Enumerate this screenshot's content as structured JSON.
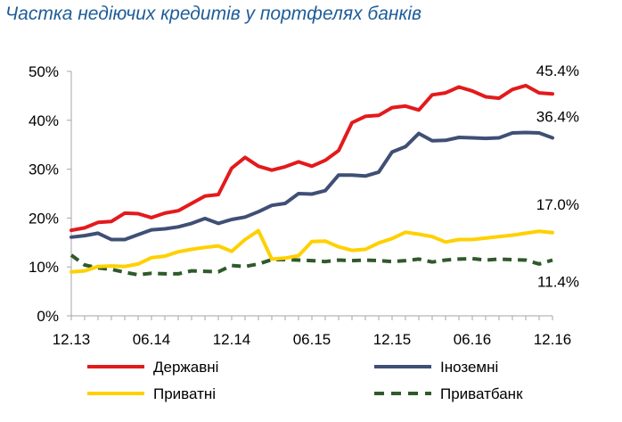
{
  "title": "Частка недіючих кредитів у портфелях банків",
  "chart_data": {
    "type": "line",
    "title": "Частка недіючих кредитів у портфелях банків",
    "xlabel": "",
    "ylabel": "",
    "ylim": [
      0,
      50
    ],
    "y_ticks": [
      "0%",
      "10%",
      "20%",
      "30%",
      "40%",
      "50%"
    ],
    "x_tick_labels": [
      "12.13",
      "06.14",
      "12.14",
      "06.15",
      "12.15",
      "06.16",
      "12.16"
    ],
    "x": [
      "12.13",
      "01.14",
      "02.14",
      "03.14",
      "04.14",
      "05.14",
      "06.14",
      "07.14",
      "08.14",
      "09.14",
      "10.14",
      "11.14",
      "12.14",
      "01.15",
      "02.15",
      "03.15",
      "04.15",
      "05.15",
      "06.15",
      "07.15",
      "08.15",
      "09.15",
      "10.15",
      "11.15",
      "12.15",
      "01.16",
      "02.16",
      "03.16",
      "04.16",
      "05.16",
      "06.16",
      "07.16",
      "08.16",
      "09.16",
      "10.16",
      "11.16",
      "12.16"
    ],
    "grid": false,
    "legend_position": "bottom",
    "series": [
      {
        "name": "Державні",
        "color": "#e31a1c",
        "style": "solid",
        "values": [
          17.5,
          18.0,
          19.1,
          19.3,
          21.0,
          20.9,
          20.1,
          21.0,
          21.5,
          23.0,
          24.5,
          24.8,
          30.2,
          32.4,
          30.6,
          29.8,
          30.5,
          31.5,
          30.6,
          31.8,
          33.8,
          39.5,
          40.8,
          41.0,
          42.6,
          42.9,
          42.1,
          45.2,
          45.6,
          46.8,
          46.0,
          44.8,
          44.5,
          46.3,
          47.1,
          45.6,
          45.4
        ],
        "end_label": "45.4%"
      },
      {
        "name": "Іноземні",
        "color": "#3f4f75",
        "style": "solid",
        "values": [
          16.1,
          16.4,
          16.9,
          15.6,
          15.6,
          16.6,
          17.6,
          17.8,
          18.2,
          18.9,
          19.9,
          18.9,
          19.7,
          20.2,
          21.3,
          22.6,
          23.0,
          25.0,
          24.9,
          25.6,
          28.8,
          28.8,
          28.6,
          29.4,
          33.5,
          34.6,
          37.3,
          35.8,
          35.9,
          36.5,
          36.4,
          36.3,
          36.4,
          37.4,
          37.5,
          37.4,
          36.4
        ],
        "end_label": "36.4%"
      },
      {
        "name": "Приватні",
        "color": "#ffd000",
        "style": "solid",
        "values": [
          9.0,
          9.2,
          10.1,
          10.2,
          10.1,
          10.6,
          11.9,
          12.2,
          13.1,
          13.6,
          14.0,
          14.3,
          13.2,
          15.6,
          17.4,
          11.6,
          11.8,
          12.3,
          15.2,
          15.3,
          14.1,
          13.4,
          13.6,
          14.9,
          15.8,
          17.1,
          16.7,
          16.2,
          15.1,
          15.6,
          15.6,
          15.9,
          16.2,
          16.5,
          16.9,
          17.3,
          17.0
        ],
        "end_label": "17.0%"
      },
      {
        "name": "Приватбанк",
        "color": "#2f5a2a",
        "style": "dashed",
        "values": [
          12.4,
          10.4,
          9.8,
          9.5,
          8.9,
          8.4,
          8.7,
          8.6,
          8.6,
          9.2,
          9.1,
          9.0,
          10.3,
          10.1,
          10.6,
          11.5,
          11.5,
          11.4,
          11.3,
          11.1,
          11.4,
          11.3,
          11.4,
          11.3,
          11.1,
          11.3,
          11.6,
          11.0,
          11.4,
          11.6,
          11.7,
          11.4,
          11.6,
          11.5,
          11.4,
          10.6,
          11.4
        ],
        "end_label": "11.4%"
      }
    ]
  }
}
